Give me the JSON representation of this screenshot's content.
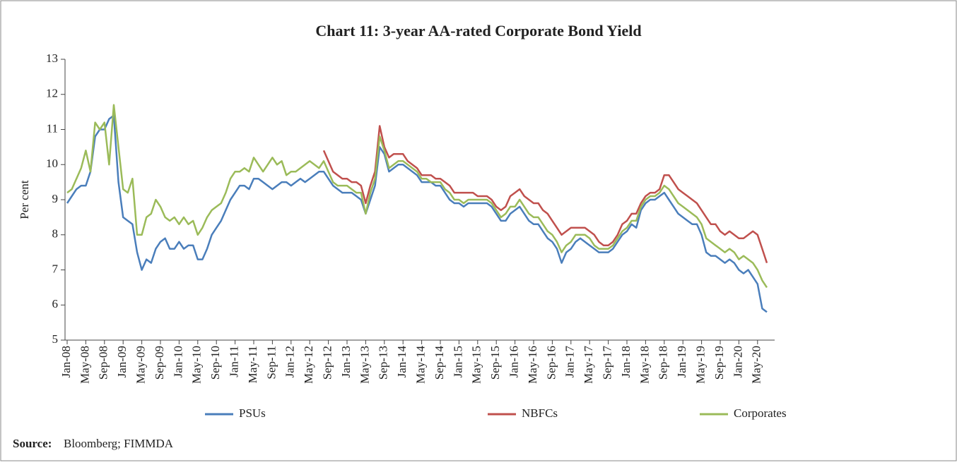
{
  "chart_data": {
    "type": "line",
    "title": "Chart 11: 3-year AA-rated Corporate Bond Yield",
    "ylabel": "Per cent",
    "source_label": "Source:",
    "source": "Bloomberg; FIMMDA",
    "ylim": [
      5,
      13
    ],
    "yticks": [
      5,
      6,
      7,
      8,
      9,
      10,
      11,
      12,
      13
    ],
    "categories": [
      "Jan-08",
      null,
      null,
      null,
      "May-08",
      null,
      null,
      null,
      "Sep-08",
      null,
      null,
      null,
      "Jan-09",
      null,
      null,
      null,
      "May-09",
      null,
      null,
      null,
      "Sep-09",
      null,
      null,
      null,
      "Jan-10",
      null,
      null,
      null,
      "May-10",
      null,
      null,
      null,
      "Sep-10",
      null,
      null,
      null,
      "Jan-11",
      null,
      null,
      null,
      "May-11",
      null,
      null,
      null,
      "Sep-11",
      null,
      null,
      null,
      "Jan-12",
      null,
      null,
      null,
      "May-12",
      null,
      null,
      null,
      "Sep-12",
      null,
      null,
      null,
      "Jan-13",
      null,
      null,
      null,
      "May-13",
      null,
      null,
      null,
      "Sep-13",
      null,
      null,
      null,
      "Jan-14",
      null,
      null,
      null,
      "May-14",
      null,
      null,
      null,
      "Sep-14",
      null,
      null,
      null,
      "Jan-15",
      null,
      null,
      null,
      "May-15",
      null,
      null,
      null,
      "Sep-15",
      null,
      null,
      null,
      "Jan-16",
      null,
      null,
      null,
      "May-16",
      null,
      null,
      null,
      "Sep-16",
      null,
      null,
      null,
      "Jan-17",
      null,
      null,
      null,
      "May-17",
      null,
      null,
      null,
      "Sep-17",
      null,
      null,
      null,
      "Jan-18",
      null,
      null,
      null,
      "May-18",
      null,
      null,
      null,
      "Sep-18",
      null,
      null,
      null,
      "Jan-19",
      null,
      null,
      null,
      "May-19",
      null,
      null,
      null,
      "Sep-19",
      null,
      null,
      null,
      "Jan-20",
      null,
      null,
      null,
      "May-20",
      null,
      null
    ],
    "series": [
      {
        "name": "PSUs",
        "color": "#4a7ebb",
        "values": [
          8.9,
          9.1,
          9.3,
          9.4,
          9.4,
          9.8,
          10.8,
          11.0,
          11.0,
          11.3,
          11.4,
          9.5,
          8.5,
          8.4,
          8.3,
          7.5,
          7.0,
          7.3,
          7.2,
          7.6,
          7.8,
          7.9,
          7.6,
          7.6,
          7.8,
          7.6,
          7.7,
          7.7,
          7.3,
          7.3,
          7.6,
          8.0,
          8.2,
          8.4,
          8.7,
          9.0,
          9.2,
          9.4,
          9.4,
          9.3,
          9.6,
          9.6,
          9.5,
          9.4,
          9.3,
          9.4,
          9.5,
          9.5,
          9.4,
          9.5,
          9.6,
          9.5,
          9.6,
          9.7,
          9.8,
          9.8,
          9.6,
          9.4,
          9.3,
          9.2,
          9.2,
          9.2,
          9.1,
          9.0,
          8.6,
          9.0,
          9.4,
          10.5,
          10.3,
          9.8,
          9.9,
          10.0,
          10.0,
          9.9,
          9.8,
          9.7,
          9.5,
          9.5,
          9.5,
          9.4,
          9.4,
          9.2,
          9.0,
          8.9,
          8.9,
          8.8,
          8.9,
          8.9,
          8.9,
          8.9,
          8.9,
          8.8,
          8.6,
          8.4,
          8.4,
          8.6,
          8.7,
          8.8,
          8.6,
          8.4,
          8.3,
          8.3,
          8.1,
          7.9,
          7.8,
          7.6,
          7.2,
          7.5,
          7.6,
          7.8,
          7.9,
          7.8,
          7.7,
          7.6,
          7.5,
          7.5,
          7.5,
          7.6,
          7.8,
          8.0,
          8.1,
          8.3,
          8.2,
          8.7,
          8.9,
          9.0,
          9.0,
          9.1,
          9.2,
          9.0,
          8.8,
          8.6,
          8.5,
          8.4,
          8.3,
          8.3,
          8.0,
          7.5,
          7.4,
          7.4,
          7.3,
          7.2,
          7.3,
          7.2,
          7.0,
          6.9,
          7.0,
          6.8,
          6.6,
          5.9,
          5.8
        ]
      },
      {
        "name": "NBFCs",
        "color": "#c0504d",
        "values": [
          null,
          null,
          null,
          null,
          null,
          null,
          null,
          null,
          null,
          null,
          null,
          null,
          null,
          null,
          null,
          null,
          null,
          null,
          null,
          null,
          null,
          null,
          null,
          null,
          null,
          null,
          null,
          null,
          null,
          null,
          null,
          null,
          null,
          null,
          null,
          null,
          null,
          null,
          null,
          null,
          null,
          null,
          null,
          null,
          null,
          null,
          null,
          null,
          null,
          null,
          null,
          null,
          null,
          null,
          null,
          10.4,
          10.1,
          9.8,
          9.7,
          9.6,
          9.6,
          9.5,
          9.5,
          9.4,
          8.9,
          9.4,
          9.8,
          11.1,
          10.5,
          10.2,
          10.3,
          10.3,
          10.3,
          10.1,
          10.0,
          9.9,
          9.7,
          9.7,
          9.7,
          9.6,
          9.6,
          9.5,
          9.4,
          9.2,
          9.2,
          9.2,
          9.2,
          9.2,
          9.1,
          9.1,
          9.1,
          9.0,
          8.8,
          8.7,
          8.8,
          9.1,
          9.2,
          9.3,
          9.1,
          9.0,
          8.9,
          8.9,
          8.7,
          8.6,
          8.4,
          8.2,
          8.0,
          8.1,
          8.2,
          8.2,
          8.2,
          8.2,
          8.1,
          8.0,
          7.8,
          7.7,
          7.7,
          7.8,
          8.0,
          8.3,
          8.4,
          8.6,
          8.6,
          8.9,
          9.1,
          9.2,
          9.2,
          9.3,
          9.7,
          9.7,
          9.5,
          9.3,
          9.2,
          9.1,
          9.0,
          8.9,
          8.7,
          8.5,
          8.3,
          8.3,
          8.1,
          8.0,
          8.1,
          8.0,
          7.9,
          7.9,
          8.0,
          8.1,
          8.0,
          7.6,
          7.2
        ]
      },
      {
        "name": "Corporates",
        "color": "#9bbb59",
        "values": [
          9.2,
          9.3,
          9.6,
          9.9,
          10.4,
          9.8,
          11.2,
          11.0,
          11.2,
          10.0,
          11.7,
          10.5,
          9.3,
          9.2,
          9.6,
          8.0,
          8.0,
          8.5,
          8.6,
          9.0,
          8.8,
          8.5,
          8.4,
          8.5,
          8.3,
          8.5,
          8.3,
          8.4,
          8.0,
          8.2,
          8.5,
          8.7,
          8.8,
          8.9,
          9.2,
          9.6,
          9.8,
          9.8,
          9.9,
          9.8,
          10.2,
          10.0,
          9.8,
          10.0,
          10.2,
          10.0,
          10.1,
          9.7,
          9.8,
          9.8,
          9.9,
          10.0,
          10.1,
          10.0,
          9.9,
          10.1,
          9.8,
          9.5,
          9.4,
          9.4,
          9.4,
          9.3,
          9.2,
          9.2,
          8.6,
          9.2,
          9.6,
          10.8,
          10.4,
          9.9,
          10.0,
          10.1,
          10.1,
          10.0,
          9.9,
          9.8,
          9.6,
          9.6,
          9.5,
          9.5,
          9.5,
          9.3,
          9.2,
          9.0,
          9.0,
          8.9,
          9.0,
          9.0,
          9.0,
          9.0,
          9.0,
          8.9,
          8.7,
          8.5,
          8.6,
          8.8,
          8.8,
          9.0,
          8.8,
          8.6,
          8.5,
          8.5,
          8.3,
          8.1,
          8.0,
          7.8,
          7.5,
          7.7,
          7.8,
          8.0,
          8.0,
          8.0,
          7.9,
          7.7,
          7.6,
          7.6,
          7.6,
          7.7,
          7.9,
          8.1,
          8.2,
          8.4,
          8.4,
          8.8,
          9.0,
          9.1,
          9.1,
          9.2,
          9.4,
          9.3,
          9.1,
          8.9,
          8.8,
          8.7,
          8.6,
          8.5,
          8.3,
          7.9,
          7.8,
          7.7,
          7.6,
          7.5,
          7.6,
          7.5,
          7.3,
          7.4,
          7.3,
          7.2,
          7.0,
          6.7,
          6.5
        ]
      }
    ]
  }
}
